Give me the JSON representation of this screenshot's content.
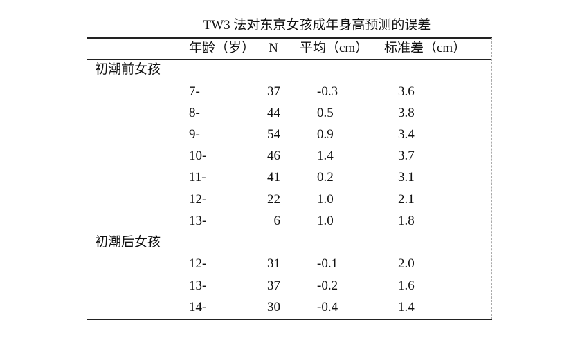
{
  "title": "TW3 法对东京女孩成年身高预测的误差",
  "table": {
    "header": [
      "年龄（岁）",
      "N",
      "平均（cm）",
      "标准差（cm）"
    ],
    "groups": [
      {
        "label": "初潮前女孩",
        "rows": [
          [
            "7-",
            "37",
            "-0.3",
            "3.6"
          ],
          [
            "8-",
            "44",
            "0.5",
            "3.8"
          ],
          [
            "9-",
            "54",
            "0.9",
            "3.4"
          ],
          [
            "10-",
            "46",
            "1.4",
            "3.7"
          ],
          [
            "11-",
            "41",
            "0.2",
            "3.1"
          ],
          [
            "12-",
            "22",
            "1.0",
            "2.1"
          ],
          [
            "13-",
            "6",
            "1.0",
            "1.8"
          ]
        ]
      },
      {
        "label": "初潮后女孩",
        "rows": [
          [
            "12-",
            "31",
            "-0.1",
            "2.0"
          ],
          [
            "13-",
            "37",
            "-0.2",
            "1.6"
          ],
          [
            "14-",
            "30",
            "-0.4",
            "1.4"
          ]
        ]
      }
    ]
  }
}
